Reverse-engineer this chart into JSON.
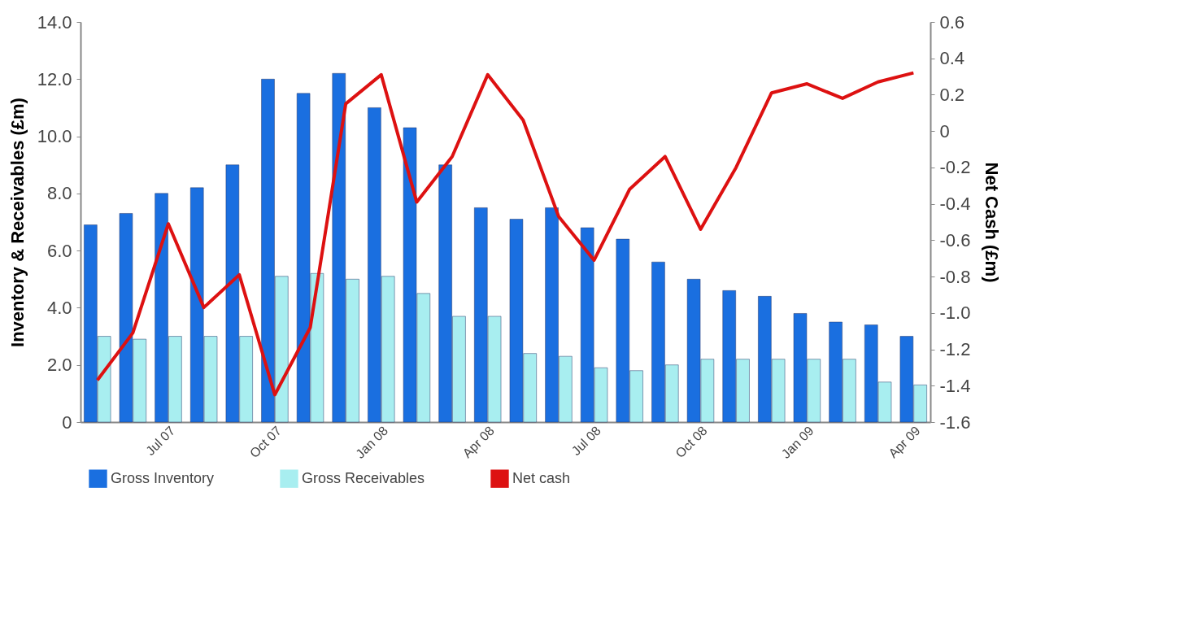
{
  "chart_data": {
    "type": "bar",
    "ylabel": "Inventory & Receivables (£m)",
    "y2label": "Net Cash (£m)",
    "categories": [
      null,
      null,
      "Jul 07",
      null,
      null,
      "Oct 07",
      null,
      null,
      "Jan 08",
      null,
      null,
      "Apr 08",
      null,
      null,
      "Jul 08",
      null,
      null,
      "Oct 08",
      null,
      null,
      "Jan 09",
      null,
      null,
      "Apr 09"
    ],
    "series": [
      {
        "name": "Gross Inventory",
        "color": "#1a6fe0",
        "values": [
          6.9,
          7.3,
          8.0,
          8.2,
          9.0,
          12.0,
          11.5,
          12.2,
          11.0,
          10.3,
          9.0,
          7.5,
          7.1,
          7.5,
          6.8,
          6.4,
          5.6,
          5.0,
          4.6,
          4.4,
          3.8,
          3.5,
          3.4,
          3.0
        ]
      },
      {
        "name": "Gross Receivables",
        "color": "#a8eef0",
        "values": [
          3.0,
          2.9,
          3.0,
          3.0,
          3.0,
          5.1,
          5.2,
          5.0,
          5.1,
          4.5,
          3.7,
          3.7,
          2.4,
          2.3,
          1.9,
          1.8,
          2.0,
          2.2,
          2.2,
          2.2,
          2.2,
          2.2,
          1.4,
          1.3
        ]
      },
      {
        "name": "Net cash",
        "color": "#dd1111",
        "type": "line",
        "axis": "y2",
        "values": [
          -1.37,
          -1.11,
          -0.51,
          -0.97,
          -0.79,
          -1.45,
          -1.08,
          0.15,
          0.31,
          -0.39,
          -0.14,
          0.31,
          0.06,
          -0.47,
          -0.71,
          -0.32,
          -0.14,
          -0.54,
          -0.2,
          0.21,
          0.26,
          0.18,
          0.27,
          0.32
        ]
      }
    ],
    "ylim": [
      0,
      14
    ],
    "yticks": [
      {
        "value": 0,
        "label": "0"
      },
      {
        "value": 2,
        "label": "2.0"
      },
      {
        "value": 4,
        "label": "4.0"
      },
      {
        "value": 6,
        "label": "6.0"
      },
      {
        "value": 8,
        "label": "8.0"
      },
      {
        "value": 10,
        "label": "10.0"
      },
      {
        "value": 12,
        "label": "12.0"
      },
      {
        "value": 14,
        "label": "14.0"
      }
    ],
    "y2lim": [
      -1.6,
      0.6
    ],
    "y2ticks": [
      -1.6,
      -1.4,
      -1.2,
      {
        "value": -1,
        "label": "-1.0"
      },
      -0.8,
      -0.6,
      -0.4,
      -0.2,
      0,
      0.2,
      0.4,
      0.6
    ],
    "grid": false,
    "legend": "bottom"
  }
}
